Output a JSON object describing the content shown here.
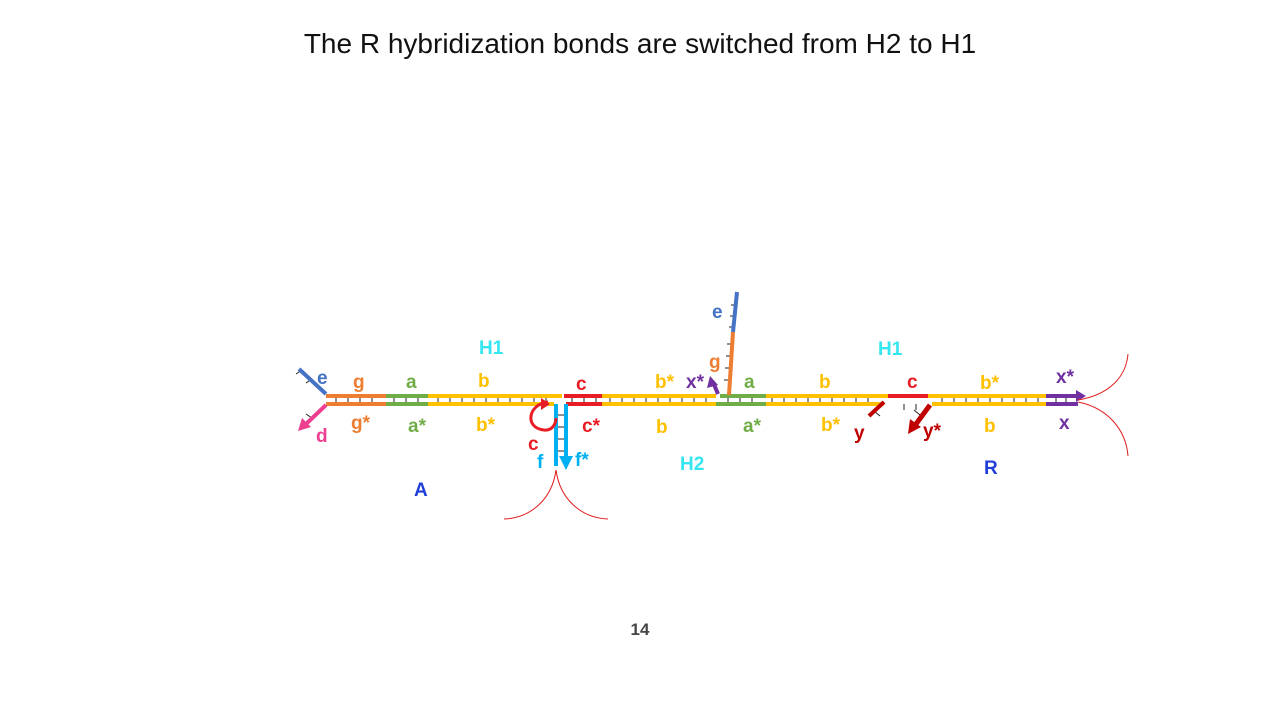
{
  "slide": {
    "title": "The R hybridization bonds are switched from H2 to H1",
    "page_number": "14"
  },
  "colors": {
    "domain_e": "#4472c4",
    "domain_d": "#ed3e8f",
    "domain_g": "#ed7d31",
    "domain_a": "#70ad47",
    "domain_b": "#ffc000",
    "domain_c": "#e81c24",
    "domain_f": "#00b0f0",
    "domain_x": "#7030a0",
    "domain_y": "#c00000",
    "strand_h": "#33e6f0",
    "strand_r": "#1f3fd8",
    "arc": "#e02020"
  },
  "strands": {
    "h1_left": "H1",
    "h1_right": "H1",
    "h2": "H2",
    "a": "A",
    "r": "R"
  },
  "domains": {
    "e_left": "e",
    "d": "d",
    "g_top_left": "g",
    "g_star_left": "g*",
    "a_top_left": "a",
    "a_star_left": "a*",
    "b_top_left": "b",
    "b_star_left": "b*",
    "c_top_left": "c",
    "c_loop": "c",
    "c_star_mid": "c*",
    "f": "f",
    "f_star": "f*",
    "b_star_top_mid": "b*",
    "b_bottom_mid": "b",
    "x_star_mid": "x*",
    "e_top": "e",
    "g_top_mid": "g",
    "a_top_right": "a",
    "a_star_right": "a*",
    "b_top_right": "b",
    "b_star_right": "b*",
    "y": "y",
    "c_top_right": "c",
    "y_star": "y*",
    "b_star_far_right": "b*",
    "b_far_right": "b",
    "x_star_right": "x*",
    "x_right": "x"
  }
}
